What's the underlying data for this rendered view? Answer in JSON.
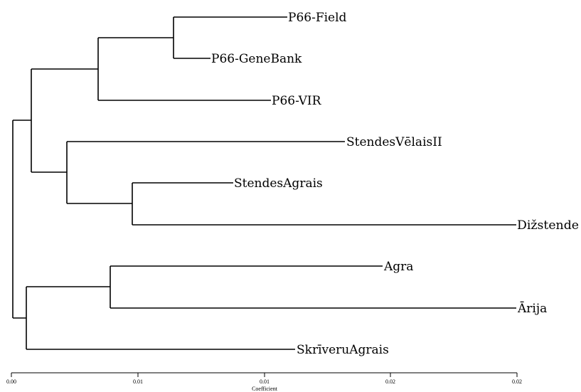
{
  "dendrogram": {
    "leaves": [
      "P66-Field",
      "P66-GeneBank",
      "P66-VIR",
      "StendesVēlaisII",
      "StendesAgrais",
      "Dižstende",
      "Agra",
      "Ārija",
      "SkrīveruAgrais"
    ],
    "axis": {
      "title": "Coefficient",
      "tick_labels": [
        "0.00",
        "0.01",
        "0.01",
        "0.02",
        "0.02"
      ]
    }
  }
}
